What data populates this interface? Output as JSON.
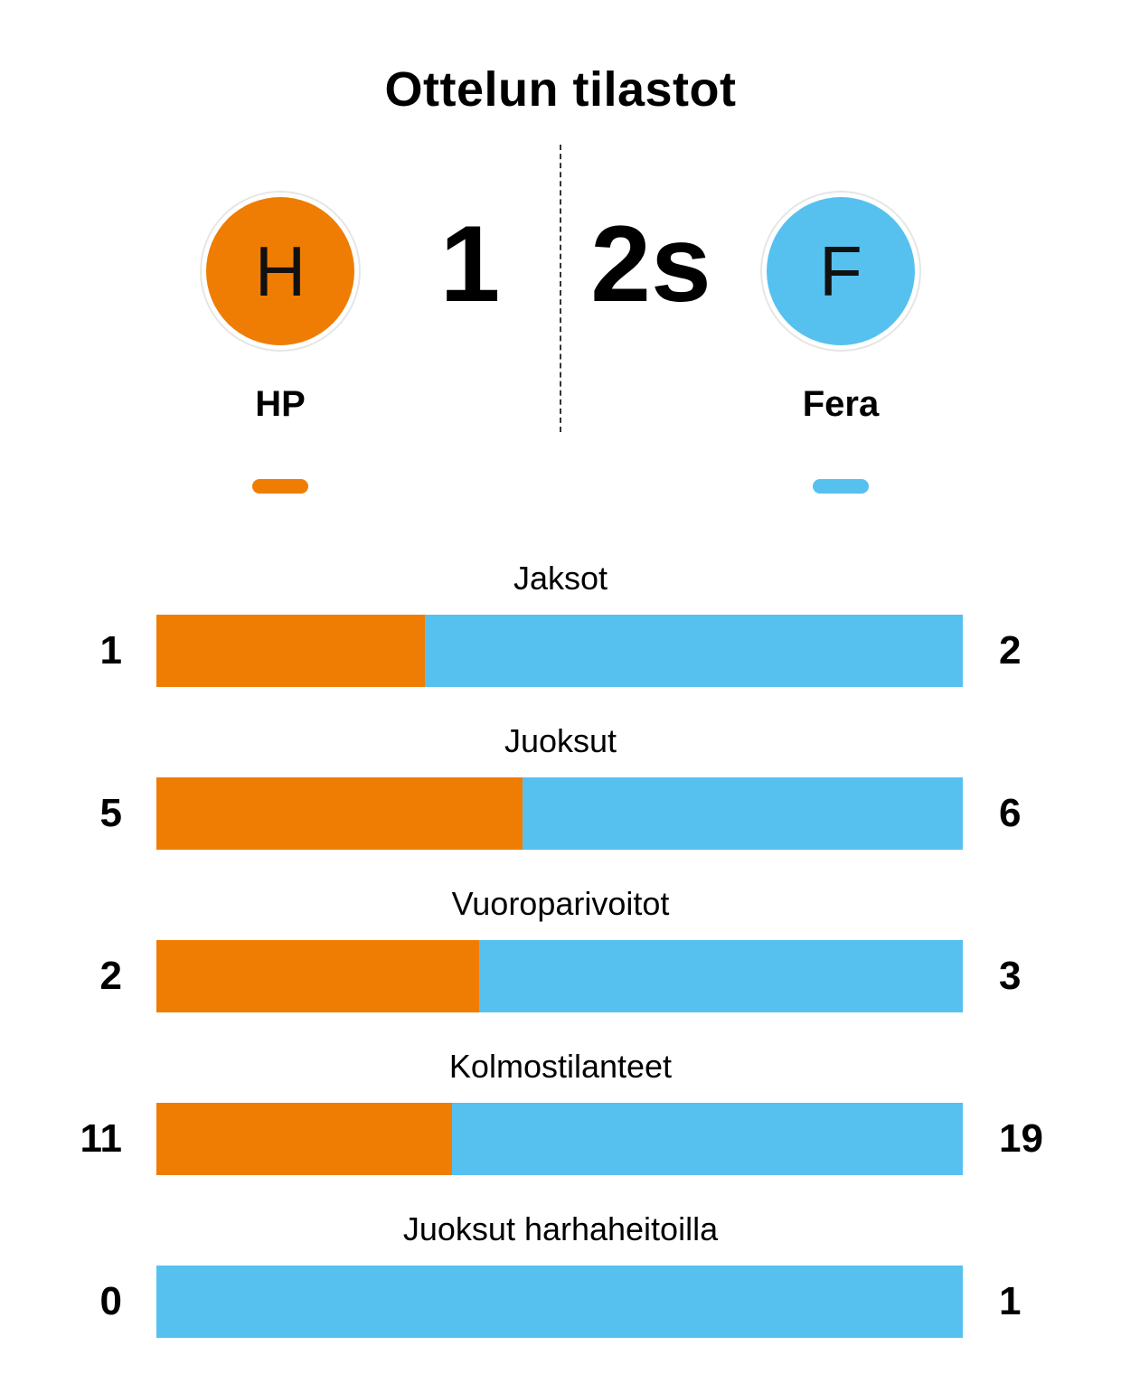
{
  "title": "Ottelun tilastot",
  "colors": {
    "home": "#ef7d03",
    "away": "#56c1ef"
  },
  "home": {
    "initial": "H",
    "name": "HP",
    "score": "1"
  },
  "away": {
    "initial": "F",
    "name": "Fera",
    "score": "2s"
  },
  "chart_data": {
    "type": "bar",
    "orientation": "horizontal-stacked",
    "categories": [
      "Jaksot",
      "Juoksut",
      "Vuoroparivoitot",
      "Kolmostilanteet",
      "Juoksut harhaheitoilla"
    ],
    "series": [
      {
        "name": "HP",
        "values": [
          1,
          5,
          2,
          11,
          0
        ]
      },
      {
        "name": "Fera",
        "values": [
          2,
          6,
          3,
          19,
          1
        ]
      }
    ]
  }
}
